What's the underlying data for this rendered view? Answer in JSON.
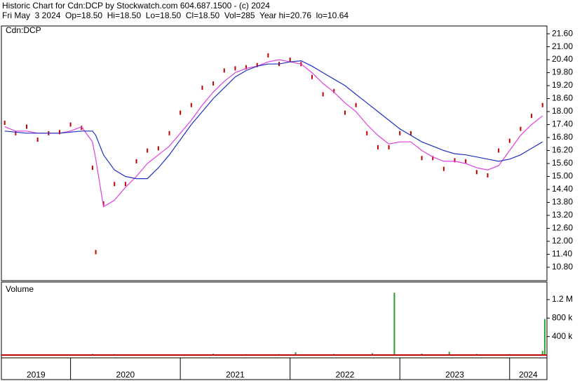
{
  "header": {
    "line1": "Historic Chart for Cdn:DCP by Stockwatch.com 604.687.1500 - (c) 2024",
    "line2": "Fri May  3 2024  Op=18.50  Hi=18.50  Lo=18.50  Cl=18.50  Vol=285  Year hi=20.76  lo=10.64"
  },
  "chart_data": [
    {
      "type": "line",
      "title": "Cdn:DCP",
      "x": [
        2019.4,
        2019.5,
        2019.6,
        2019.7,
        2019.8,
        2019.9,
        2020.0,
        2020.1,
        2020.2,
        2020.23,
        2020.3,
        2020.4,
        2020.5,
        2020.6,
        2020.7,
        2020.8,
        2020.9,
        2021.0,
        2021.1,
        2021.2,
        2021.3,
        2021.4,
        2021.5,
        2021.6,
        2021.7,
        2021.8,
        2021.9,
        2022.0,
        2022.1,
        2022.2,
        2022.3,
        2022.4,
        2022.5,
        2022.6,
        2022.7,
        2022.8,
        2022.9,
        2023.0,
        2023.1,
        2023.2,
        2023.3,
        2023.4,
        2023.5,
        2023.6,
        2023.7,
        2023.8,
        2023.9,
        2024.0,
        2024.1,
        2024.2,
        2024.3
      ],
      "series": [
        {
          "color": "#c00000",
          "style": "marker",
          "values": [
            17.48,
            17.0,
            17.3,
            16.7,
            17.0,
            17.05,
            17.4,
            17.25,
            15.4,
            11.5,
            13.75,
            14.65,
            14.65,
            15.7,
            16.2,
            16.3,
            17.0,
            17.95,
            18.3,
            19.1,
            19.3,
            19.9,
            20.0,
            20.05,
            20.15,
            20.6,
            20.2,
            20.4,
            20.2,
            19.6,
            18.8,
            18.95,
            17.95,
            18.3,
            17.0,
            16.35,
            16.35,
            17.0,
            17.0,
            15.85,
            15.85,
            15.35,
            15.75,
            15.7,
            15.2,
            15.05,
            16.2,
            16.65,
            17.2,
            17.8,
            18.3
          ]
        },
        {
          "color": "#e040e0",
          "style": "line",
          "values": [
            17.3,
            17.1,
            17.1,
            17.0,
            17.0,
            17.0,
            17.1,
            17.3,
            16.6,
            15.8,
            13.6,
            13.9,
            14.5,
            15.0,
            15.6,
            16.0,
            16.4,
            17.0,
            17.6,
            18.3,
            18.9,
            19.4,
            19.8,
            20.0,
            20.1,
            20.3,
            20.4,
            20.3,
            20.2,
            19.8,
            19.3,
            18.9,
            18.4,
            18.0,
            17.4,
            16.9,
            16.5,
            16.6,
            16.6,
            16.2,
            15.9,
            15.7,
            15.7,
            15.6,
            15.4,
            15.3,
            15.5,
            16.2,
            16.9,
            17.4,
            17.8
          ]
        },
        {
          "color": "#2030c0",
          "style": "line",
          "values": [
            17.1,
            17.05,
            17.0,
            17.0,
            17.0,
            17.0,
            17.05,
            17.1,
            17.1,
            16.9,
            16.0,
            15.3,
            15.0,
            14.9,
            14.9,
            15.4,
            16.0,
            16.7,
            17.4,
            18.0,
            18.6,
            19.1,
            19.6,
            19.9,
            20.1,
            20.2,
            20.2,
            20.3,
            20.35,
            20.1,
            19.8,
            19.5,
            19.2,
            18.8,
            18.4,
            18.0,
            17.6,
            17.2,
            16.9,
            16.6,
            16.4,
            16.2,
            16.05,
            16.0,
            15.9,
            15.8,
            15.7,
            15.8,
            16.0,
            16.3,
            16.6
          ]
        }
      ],
      "xlim": [
        2019.37,
        2024.34
      ],
      "ylim": [
        10.18,
        21.96
      ],
      "yticks": [
        {
          "value": 10.8,
          "label": "10.80"
        },
        {
          "value": 11.4,
          "label": "11.40"
        },
        {
          "value": 12.0,
          "label": "12.00"
        },
        {
          "value": 12.6,
          "label": "12.60"
        },
        {
          "value": 13.2,
          "label": "13.20"
        },
        {
          "value": 13.8,
          "label": "13.80"
        },
        {
          "value": 14.4,
          "label": "14.40"
        },
        {
          "value": 15.0,
          "label": "15.00"
        },
        {
          "value": 15.6,
          "label": "15.60"
        },
        {
          "value": 16.2,
          "label": "16.20"
        },
        {
          "value": 16.8,
          "label": "16.80"
        },
        {
          "value": 17.4,
          "label": "17.40"
        },
        {
          "value": 18.0,
          "label": "18.00"
        },
        {
          "value": 18.6,
          "label": "18.60"
        },
        {
          "value": 19.2,
          "label": "19.20"
        },
        {
          "value": 19.8,
          "label": "19.80"
        },
        {
          "value": 20.4,
          "label": "20.40"
        },
        {
          "value": 21.0,
          "label": "21.00"
        },
        {
          "value": 21.6,
          "label": "21.60"
        }
      ]
    },
    {
      "type": "bar",
      "title": "Volume",
      "color": "#2ca02c",
      "x": [
        2019.5,
        2019.8,
        2020.2,
        2020.4,
        2020.9,
        2021.3,
        2021.6,
        2021.9,
        2022.05,
        2022.4,
        2022.75,
        2022.95,
        2023.2,
        2023.45,
        2023.7,
        2024.0,
        2024.3,
        2024.32
      ],
      "values": [
        15000,
        12000,
        25000,
        20000,
        15000,
        30000,
        18000,
        20000,
        60000,
        25000,
        40000,
        1350000,
        30000,
        70000,
        25000,
        20000,
        90000,
        780000
      ],
      "xlim": [
        2019.37,
        2024.34
      ],
      "ylim": [
        0,
        1580000
      ],
      "yticks": [
        {
          "value": 400000,
          "label": "400 k"
        },
        {
          "value": 800000,
          "label": "800 k"
        },
        {
          "value": 1200000,
          "label": "1.2 M"
        }
      ],
      "xticks": [
        2020,
        2021,
        2022,
        2023,
        2024
      ],
      "x_labels": [
        "2019",
        "2020",
        "2021",
        "2022",
        "2023",
        "2024"
      ]
    }
  ]
}
